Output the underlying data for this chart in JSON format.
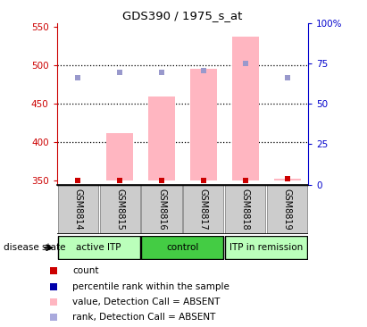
{
  "title": "GDS390 / 1975_s_at",
  "samples": [
    "GSM8814",
    "GSM8815",
    "GSM8816",
    "GSM8817",
    "GSM8818",
    "GSM8819"
  ],
  "bar_values": [
    350,
    412,
    460,
    496,
    537,
    353
  ],
  "bar_bottom": 350,
  "count_values": [
    350,
    350,
    350,
    350,
    350,
    353
  ],
  "rank_values": [
    484,
    491,
    491,
    493,
    502,
    484
  ],
  "ylim_left": [
    345,
    555
  ],
  "ylim_right": [
    0,
    100
  ],
  "yticks_left": [
    350,
    400,
    450,
    500,
    550
  ],
  "yticks_right": [
    0,
    25,
    50,
    75,
    100
  ],
  "ytick_labels_right": [
    "0",
    "25",
    "50",
    "75",
    "100%"
  ],
  "hlines": [
    400,
    450,
    500
  ],
  "bar_color": "#FFB6C1",
  "count_color": "#CC0000",
  "rank_color": "#9999CC",
  "left_tick_color": "#CC0000",
  "right_tick_color": "#0000CC",
  "legend_items": [
    {
      "label": "count",
      "color": "#CC0000"
    },
    {
      "label": "percentile rank within the sample",
      "color": "#0000AA"
    },
    {
      "label": "value, Detection Call = ABSENT",
      "color": "#FFB6C1"
    },
    {
      "label": "rank, Detection Call = ABSENT",
      "color": "#AAAADD"
    }
  ],
  "disease_state_label": "disease state",
  "groups": [
    {
      "label": "active ITP",
      "start": 0,
      "end": 1,
      "color": "#BBFFBB"
    },
    {
      "label": "control",
      "start": 2,
      "end": 3,
      "color": "#44CC44"
    },
    {
      "label": "ITP in remission",
      "start": 4,
      "end": 5,
      "color": "#BBFFBB"
    }
  ],
  "group_border_color": "#000000",
  "sample_box_color": "#CCCCCC",
  "sample_box_edge": "#888888"
}
